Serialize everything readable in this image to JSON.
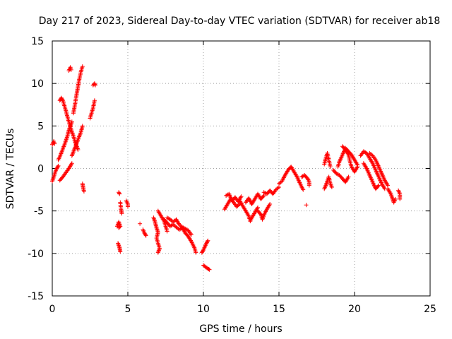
{
  "chart_data": {
    "type": "scatter",
    "title": "Day 217 of 2023, Sidereal Day-to-day VTEC variation (SDTVAR) for receiver ab18",
    "xlabel": "GPS time / hours",
    "ylabel": "SDTVAR / TECUs",
    "xlim": [
      0,
      25
    ],
    "ylim": [
      -15,
      15
    ],
    "xticks": [
      0,
      5,
      10,
      15,
      20,
      25
    ],
    "yticks": [
      -15,
      -10,
      -5,
      0,
      5,
      10,
      15
    ],
    "xtick_labels": [
      "0",
      "5",
      "10",
      "15",
      "20",
      "25"
    ],
    "ytick_labels": [
      "-15",
      "-10",
      "-5",
      "0",
      "5",
      "10",
      "15"
    ],
    "grid": true,
    "marker": "+",
    "color": "#ff0000",
    "series": [
      {
        "name": "SDTVAR",
        "segments": [
          [
            [
              0.0,
              -1.5
            ],
            [
              0.1,
              -1.0
            ],
            [
              0.2,
              -0.4
            ],
            [
              0.3,
              0.0
            ],
            [
              0.4,
              0.3
            ]
          ],
          [
            [
              0.0,
              2.8
            ],
            [
              0.1,
              3.2
            ],
            [
              0.15,
              2.9
            ]
          ],
          [
            [
              0.5,
              -1.4
            ],
            [
              0.7,
              -1.0
            ],
            [
              0.9,
              -0.5
            ],
            [
              1.1,
              0.0
            ],
            [
              1.3,
              0.6
            ]
          ],
          [
            [
              0.4,
              1.0
            ],
            [
              0.55,
              1.6
            ],
            [
              0.7,
              2.3
            ],
            [
              0.85,
              3.0
            ],
            [
              1.0,
              3.8
            ],
            [
              1.1,
              4.5
            ],
            [
              1.2,
              5.0
            ],
            [
              1.3,
              5.5
            ]
          ],
          [
            [
              0.5,
              8.0
            ],
            [
              0.6,
              8.3
            ],
            [
              0.7,
              8.0
            ],
            [
              0.8,
              7.4
            ],
            [
              0.9,
              6.8
            ],
            [
              1.0,
              6.1
            ],
            [
              1.1,
              5.5
            ],
            [
              1.2,
              4.9
            ],
            [
              1.3,
              4.3
            ],
            [
              1.4,
              3.8
            ],
            [
              1.5,
              3.2
            ],
            [
              1.6,
              2.7
            ],
            [
              1.7,
              2.2
            ]
          ],
          [
            [
              1.1,
              11.5
            ],
            [
              1.2,
              11.9
            ],
            [
              1.25,
              11.6
            ]
          ],
          [
            [
              1.4,
              6.5
            ],
            [
              1.5,
              7.5
            ],
            [
              1.6,
              8.6
            ],
            [
              1.7,
              9.6
            ],
            [
              1.8,
              10.6
            ],
            [
              1.9,
              11.4
            ],
            [
              2.0,
              12.0
            ]
          ],
          [
            [
              1.3,
              1.5
            ],
            [
              1.45,
              2.2
            ],
            [
              1.6,
              2.9
            ],
            [
              1.75,
              3.6
            ],
            [
              1.9,
              4.3
            ],
            [
              2.0,
              5.0
            ]
          ],
          [
            [
              2.0,
              -1.8
            ],
            [
              2.05,
              -2.3
            ],
            [
              2.1,
              -2.7
            ]
          ],
          [
            [
              2.5,
              5.9
            ],
            [
              2.6,
              6.5
            ],
            [
              2.7,
              7.1
            ],
            [
              2.8,
              8.0
            ]
          ],
          [
            [
              2.7,
              9.8
            ],
            [
              2.8,
              10.0
            ],
            [
              2.85,
              9.8
            ]
          ],
          [
            [
              4.4,
              -2.8
            ],
            [
              4.45,
              -3.0
            ]
          ],
          [
            [
              4.3,
              -6.8
            ],
            [
              4.4,
              -6.3
            ],
            [
              4.5,
              -6.8
            ],
            [
              4.4,
              -7.0
            ]
          ],
          [
            [
              4.35,
              -8.8
            ],
            [
              4.45,
              -9.3
            ],
            [
              4.5,
              -9.8
            ]
          ],
          [
            [
              4.5,
              -4.0
            ],
            [
              4.55,
              -4.8
            ],
            [
              4.6,
              -5.3
            ]
          ],
          [
            [
              4.9,
              -3.8
            ],
            [
              5.0,
              -4.2
            ],
            [
              5.0,
              -4.5
            ]
          ],
          [
            [
              5.8,
              -6.5
            ]
          ],
          [
            [
              6.0,
              -7.2
            ],
            [
              6.1,
              -7.6
            ],
            [
              6.2,
              -7.9
            ]
          ],
          [
            [
              6.7,
              -5.8
            ],
            [
              6.8,
              -6.3
            ],
            [
              6.9,
              -7.0
            ],
            [
              7.0,
              -7.5
            ],
            [
              6.9,
              -8.2
            ],
            [
              7.0,
              -8.8
            ],
            [
              7.1,
              -9.4
            ],
            [
              7.0,
              -9.9
            ]
          ],
          [
            [
              7.0,
              -5.0
            ],
            [
              7.2,
              -5.6
            ],
            [
              7.4,
              -6.2
            ],
            [
              7.5,
              -6.8
            ],
            [
              7.6,
              -7.4
            ]
          ],
          [
            [
              7.4,
              -6.0
            ],
            [
              7.6,
              -6.4
            ],
            [
              7.8,
              -6.8
            ],
            [
              8.0,
              -6.6
            ],
            [
              8.2,
              -6.9
            ],
            [
              8.4,
              -7.2
            ],
            [
              8.6,
              -7.0
            ],
            [
              8.8,
              -7.6
            ],
            [
              9.0,
              -8.0
            ],
            [
              9.2,
              -8.6
            ],
            [
              9.4,
              -9.3
            ],
            [
              9.5,
              -9.9
            ]
          ],
          [
            [
              7.6,
              -5.8
            ],
            [
              7.8,
              -6.0
            ],
            [
              8.0,
              -6.3
            ],
            [
              8.2,
              -6.0
            ],
            [
              8.4,
              -6.6
            ],
            [
              8.6,
              -6.9
            ],
            [
              8.8,
              -7.1
            ],
            [
              9.0,
              -7.3
            ],
            [
              9.2,
              -7.8
            ]
          ],
          [
            [
              9.9,
              -9.9
            ],
            [
              10.0,
              -9.6
            ],
            [
              10.1,
              -9.2
            ],
            [
              10.2,
              -8.8
            ],
            [
              10.3,
              -8.5
            ]
          ],
          [
            [
              10.0,
              -11.4
            ],
            [
              10.3,
              -11.8
            ],
            [
              10.4,
              -11.9
            ]
          ],
          [
            [
              11.4,
              -4.8
            ],
            [
              11.6,
              -4.2
            ],
            [
              11.8,
              -3.6
            ],
            [
              12.0,
              -4.0
            ],
            [
              12.2,
              -4.5
            ],
            [
              12.4,
              -4.2
            ]
          ],
          [
            [
              11.5,
              -3.2
            ],
            [
              11.7,
              -3.0
            ],
            [
              11.9,
              -3.8
            ],
            [
              12.1,
              -3.4
            ],
            [
              12.3,
              -3.9
            ],
            [
              12.5,
              -3.3
            ]
          ],
          [
            [
              12.4,
              -3.8
            ],
            [
              12.6,
              -4.4
            ],
            [
              12.8,
              -5.0
            ],
            [
              13.0,
              -5.6
            ],
            [
              13.1,
              -6.2
            ],
            [
              13.2,
              -5.8
            ],
            [
              13.4,
              -5.2
            ],
            [
              13.6,
              -4.6
            ]
          ],
          [
            [
              12.8,
              -4.0
            ],
            [
              13.0,
              -3.5
            ],
            [
              13.2,
              -4.2
            ],
            [
              13.4,
              -3.6
            ],
            [
              13.6,
              -3.0
            ],
            [
              13.8,
              -3.6
            ],
            [
              14.0,
              -3.2
            ]
          ],
          [
            [
              13.6,
              -5.0
            ],
            [
              13.8,
              -5.4
            ],
            [
              13.9,
              -6.0
            ],
            [
              14.0,
              -5.5
            ],
            [
              14.2,
              -4.8
            ],
            [
              14.4,
              -4.2
            ]
          ],
          [
            [
              14.0,
              -2.8
            ],
            [
              14.2,
              -3.0
            ],
            [
              14.4,
              -2.6
            ],
            [
              14.6,
              -3.0
            ],
            [
              14.8,
              -2.5
            ],
            [
              15.0,
              -2.2
            ]
          ],
          [
            [
              15.0,
              -1.8
            ],
            [
              15.2,
              -1.5
            ],
            [
              15.4,
              -0.8
            ],
            [
              15.6,
              -0.2
            ],
            [
              15.8,
              0.2
            ],
            [
              16.0,
              -0.4
            ],
            [
              16.2,
              -1.0
            ],
            [
              16.4,
              -1.8
            ],
            [
              16.6,
              -2.5
            ]
          ],
          [
            [
              16.5,
              -1.0
            ],
            [
              16.7,
              -0.8
            ],
            [
              16.9,
              -1.2
            ],
            [
              17.0,
              -1.6
            ],
            [
              17.0,
              -2.0
            ]
          ],
          [
            [
              16.8,
              -4.3
            ]
          ],
          [
            [
              18.0,
              -2.4
            ],
            [
              18.1,
              -2.0
            ],
            [
              18.2,
              -1.5
            ],
            [
              18.3,
              -1.0
            ],
            [
              18.4,
              -1.8
            ],
            [
              18.5,
              -2.2
            ]
          ],
          [
            [
              18.0,
              0.5
            ],
            [
              18.1,
              1.2
            ],
            [
              18.2,
              1.8
            ],
            [
              18.3,
              1.0
            ],
            [
              18.4,
              0.2
            ]
          ],
          [
            [
              18.6,
              -0.2
            ],
            [
              18.8,
              -0.6
            ],
            [
              19.0,
              -0.8
            ],
            [
              19.2,
              -1.2
            ],
            [
              19.4,
              -1.6
            ],
            [
              19.6,
              -1.0
            ]
          ],
          [
            [
              18.9,
              0.2
            ],
            [
              19.0,
              0.8
            ],
            [
              19.2,
              1.6
            ],
            [
              19.4,
              2.4
            ],
            [
              19.6,
              2.0
            ],
            [
              19.8,
              1.6
            ],
            [
              20.0,
              1.0
            ],
            [
              20.2,
              0.4
            ]
          ],
          [
            [
              19.2,
              2.6
            ],
            [
              19.4,
              2.2
            ],
            [
              19.6,
              1.6
            ],
            [
              19.7,
              0.8
            ],
            [
              19.8,
              0.2
            ],
            [
              20.0,
              -0.4
            ],
            [
              20.2,
              0.2
            ]
          ],
          [
            [
              20.4,
              1.5
            ],
            [
              20.6,
              2.0
            ],
            [
              20.8,
              1.8
            ],
            [
              21.0,
              1.2
            ],
            [
              21.2,
              0.6
            ],
            [
              21.4,
              -0.2
            ],
            [
              21.6,
              -1.0
            ],
            [
              21.8,
              -1.8
            ],
            [
              22.0,
              -2.4
            ]
          ],
          [
            [
              20.6,
              0.6
            ],
            [
              20.8,
              0.0
            ],
            [
              21.0,
              -0.8
            ],
            [
              21.2,
              -1.6
            ],
            [
              21.4,
              -2.4
            ],
            [
              21.6,
              -2.0
            ]
          ],
          [
            [
              21.0,
              1.8
            ],
            [
              21.2,
              1.5
            ],
            [
              21.4,
              1.0
            ],
            [
              21.6,
              0.2
            ],
            [
              21.8,
              -0.6
            ],
            [
              22.0,
              -1.4
            ],
            [
              22.2,
              -2.0
            ]
          ],
          [
            [
              22.2,
              -2.4
            ],
            [
              22.4,
              -3.0
            ],
            [
              22.5,
              -3.5
            ],
            [
              22.6,
              -4.0
            ],
            [
              22.7,
              -3.6
            ]
          ],
          [
            [
              22.9,
              -2.6
            ],
            [
              23.0,
              -3.0
            ],
            [
              23.0,
              -3.6
            ]
          ]
        ]
      }
    ]
  }
}
